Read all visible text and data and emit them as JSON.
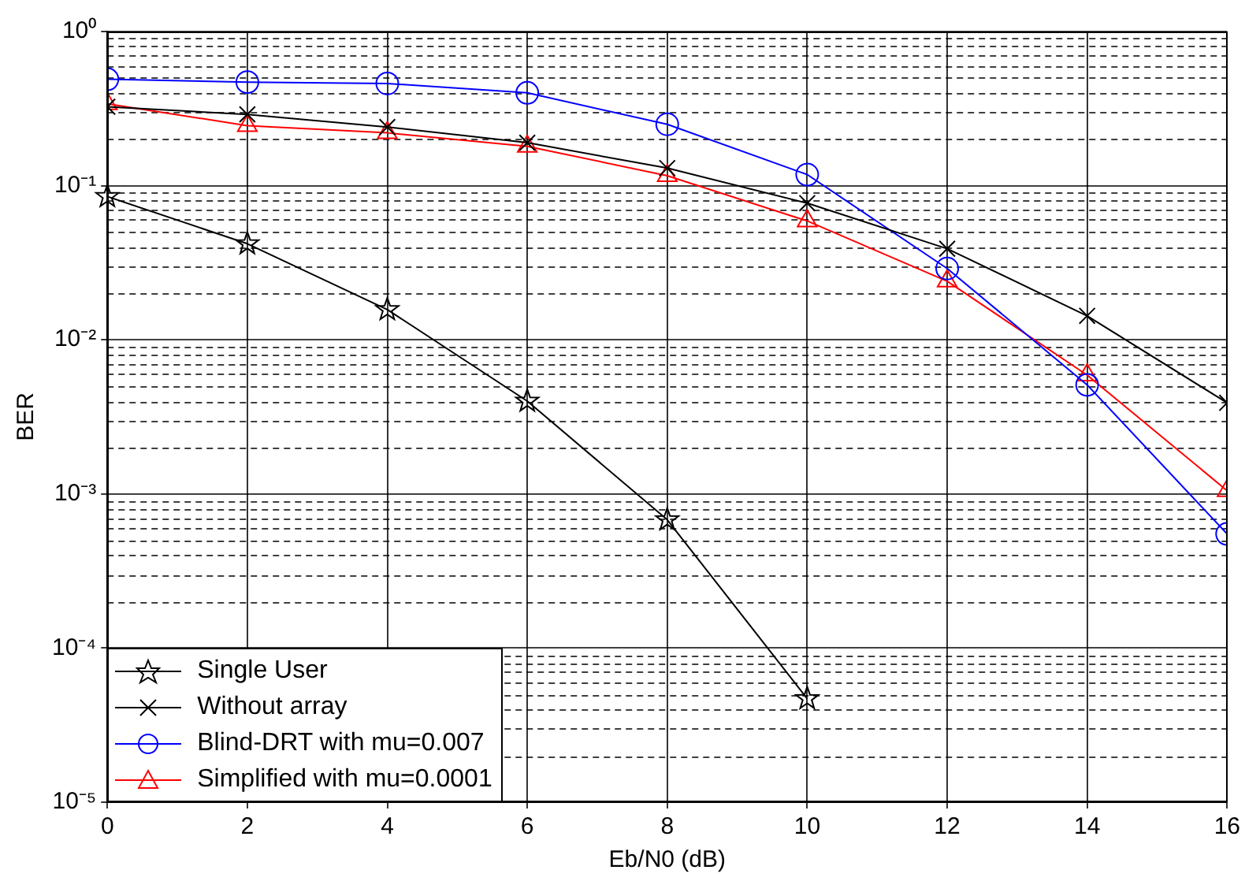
{
  "chart_data": {
    "type": "line",
    "xlabel": "Eb/N0 (dB)",
    "ylabel": "BER",
    "log": "y",
    "grid": true,
    "legend": "bottom left",
    "x": [
      0,
      2,
      4,
      6,
      8,
      10,
      12,
      14,
      16
    ],
    "xlim": [
      0,
      16
    ],
    "xticks": [
      0,
      2,
      4,
      6,
      8,
      10,
      12,
      14,
      16
    ],
    "ylim": [
      1e-05,
      1
    ],
    "yticks": [
      {
        "value": 1e-05,
        "label": "10⁻⁵"
      },
      {
        "value": 0.0001,
        "label": "10⁻⁴"
      },
      {
        "value": 0.001,
        "label": "10⁻³"
      },
      {
        "value": 0.01,
        "label": "10⁻²"
      },
      {
        "value": 0.1,
        "label": "10⁻¹"
      },
      {
        "value": 1,
        "label": "10⁰"
      }
    ],
    "series": [
      {
        "name": "Single User",
        "color": "#000000",
        "marker": "star",
        "values": [
          0.085,
          0.042,
          0.0157,
          0.004,
          0.00068,
          4.7e-05,
          null,
          null,
          null
        ]
      },
      {
        "name": "Without array",
        "color": "#000000",
        "marker": "cross",
        "values": [
          0.325,
          0.29,
          0.24,
          0.19,
          0.13,
          0.077,
          0.039,
          0.0143,
          0.0039
        ]
      },
      {
        "name": "Blind-DRT with mu=0.007",
        "color": "#0000ff",
        "marker": "circle",
        "values": [
          0.49,
          0.47,
          0.46,
          0.4,
          0.25,
          0.118,
          0.029,
          0.0051,
          0.00055
        ]
      },
      {
        "name": "Simplified with mu=0.0001",
        "color": "#ff0000",
        "marker": "triangle",
        "values": [
          0.34,
          0.245,
          0.22,
          0.18,
          0.116,
          0.059,
          0.024,
          0.0059,
          0.00105
        ]
      }
    ]
  }
}
